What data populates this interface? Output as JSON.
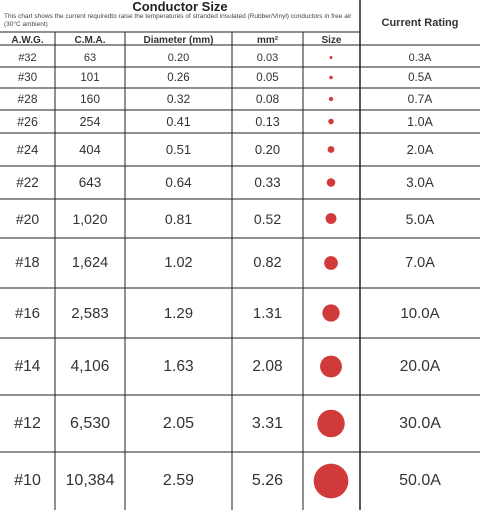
{
  "header": {
    "title": "Conductor Size",
    "note": "This chart shows the current requiredto raise the temperatures of stranded insulated (Rubber/Vinyl) conductors in free air (30°C ambient)",
    "columns": [
      "A.W.G.",
      "C.M.A.",
      "Diameter (mm)",
      "mm²",
      "Size"
    ],
    "rating_header": "Current Rating"
  },
  "rows": [
    [
      "#32",
      "63",
      "0.20",
      "0.03",
      "0.3A"
    ],
    [
      "#30",
      "101",
      "0.26",
      "0.05",
      "0.5A"
    ],
    [
      "#28",
      "160",
      "0.32",
      "0.08",
      "0.7A"
    ],
    [
      "#26",
      "254",
      "0.41",
      "0.13",
      "1.0A"
    ],
    [
      "#24",
      "404",
      "0.51",
      "0.20",
      "2.0A"
    ],
    [
      "#22",
      "643",
      "0.64",
      "0.33",
      "3.0A"
    ],
    [
      "#20",
      "1,020",
      "0.81",
      "0.52",
      "5.0A"
    ],
    [
      "#18",
      "1,624",
      "1.02",
      "0.82",
      "7.0A"
    ],
    [
      "#16",
      "2,583",
      "1.29",
      "1.31",
      "10.0A"
    ],
    [
      "#14",
      "4,106",
      "1.63",
      "2.08",
      "20.0A"
    ],
    [
      "#12",
      "6,530",
      "2.05",
      "3.31",
      "30.0A"
    ],
    [
      "#10",
      "10,384",
      "2.59",
      "5.26",
      "50.0A"
    ]
  ]
}
